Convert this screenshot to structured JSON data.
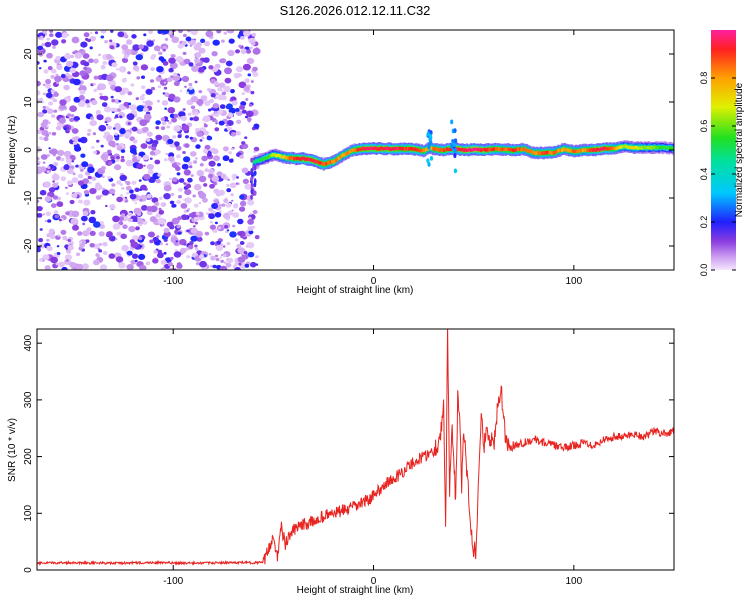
{
  "title": "S126.2026.012.12.11.C32",
  "chart_data": [
    {
      "type": "heatmap",
      "title": "S126.2026.012.12.11.C32",
      "xlabel": "Height of straight line (km)",
      "ylabel": "Frequency (Hz)",
      "xlim": [
        -168,
        150
      ],
      "ylim": [
        -25,
        25
      ],
      "xticks": [
        -100,
        0,
        100
      ],
      "yticks": [
        -20,
        -10,
        0,
        10,
        20
      ],
      "noise_region_x": [
        -168,
        -58
      ],
      "ridge": {
        "x": [
          -60,
          -55,
          -50,
          -45,
          -40,
          -35,
          -30,
          -25,
          -20,
          -15,
          -10,
          -5,
          0,
          5,
          10,
          15,
          20,
          25,
          28,
          30,
          35,
          40,
          45,
          50,
          55,
          60,
          65,
          70,
          75,
          80,
          85,
          90,
          95,
          100,
          105,
          110,
          115,
          120,
          125,
          130,
          135,
          140,
          145,
          150
        ],
        "freq": [
          -2.5,
          -1.8,
          -1.0,
          -1.5,
          -1.8,
          -1.8,
          -2.2,
          -3.0,
          -2.4,
          -1.0,
          0.0,
          0.3,
          0.3,
          0.3,
          0.2,
          0.3,
          0.2,
          -0.2,
          0.5,
          0.2,
          0.0,
          0.3,
          0.0,
          0.1,
          0.0,
          0.2,
          0.1,
          0.0,
          0.2,
          -0.6,
          -0.6,
          -0.5,
          0.2,
          -0.3,
          0.0,
          0.0,
          0.3,
          0.3,
          0.8,
          0.5,
          0.5,
          0.5,
          0.5,
          0.3
        ],
        "amplitude": [
          0.4,
          0.5,
          0.6,
          0.7,
          0.85,
          0.9,
          0.9,
          0.85,
          0.8,
          0.75,
          0.8,
          0.9,
          0.9,
          0.9,
          0.9,
          0.85,
          0.9,
          0.8,
          0.7,
          0.8,
          0.85,
          0.9,
          0.9,
          0.95,
          0.9,
          0.85,
          0.8,
          0.85,
          0.8,
          0.75,
          0.85,
          0.8,
          0.75,
          0.8,
          0.75,
          0.9,
          0.9,
          0.8,
          0.6,
          0.7,
          0.55,
          0.6,
          0.5,
          0.5
        ]
      },
      "colorbar": {
        "label": "Normalized spectral amplitude",
        "range": [
          0.0,
          1.0
        ],
        "ticks": [
          0.0,
          0.2,
          0.4,
          0.6,
          0.8
        ],
        "tick_labels": [
          "0.0",
          "0.2",
          "0.4",
          "0.6",
          "0.8"
        ]
      }
    },
    {
      "type": "line",
      "xlabel": "Height of straight line (km)",
      "ylabel": "SNR (10 * v/v)",
      "xlim": [
        -168,
        150
      ],
      "ylim": [
        0,
        425
      ],
      "xticks": [
        -100,
        0,
        100
      ],
      "yticks": [
        0,
        100,
        200,
        300,
        400
      ],
      "color": "#e8231f",
      "series": [
        {
          "name": "SNR",
          "x": [
            -168,
            -150,
            -130,
            -110,
            -90,
            -70,
            -55,
            -52,
            -50,
            -48,
            -46,
            -44,
            -42,
            -40,
            -35,
            -30,
            -25,
            -20,
            -15,
            -10,
            -5,
            0,
            5,
            10,
            15,
            20,
            25,
            30,
            33,
            35,
            36,
            37,
            38,
            39,
            40,
            41,
            42,
            43,
            44,
            45,
            46,
            47,
            48,
            49,
            50,
            51,
            52,
            53,
            54,
            55,
            56,
            58,
            60,
            62,
            64,
            65,
            66,
            68,
            70,
            75,
            80,
            85,
            90,
            95,
            100,
            105,
            110,
            115,
            120,
            125,
            130,
            135,
            140,
            145,
            150
          ],
          "values": [
            12,
            13,
            12,
            13,
            12,
            13,
            13,
            40,
            60,
            25,
            75,
            45,
            60,
            70,
            80,
            85,
            95,
            100,
            105,
            110,
            120,
            130,
            150,
            160,
            175,
            190,
            200,
            210,
            230,
            290,
            60,
            420,
            140,
            260,
            200,
            120,
            300,
            260,
            150,
            240,
            200,
            160,
            100,
            60,
            40,
            30,
            120,
            220,
            280,
            200,
            250,
            230,
            220,
            290,
            310,
            260,
            230,
            215,
            220,
            225,
            230,
            225,
            220,
            215,
            220,
            225,
            220,
            230,
            235,
            235,
            240,
            235,
            245,
            240,
            245
          ]
        }
      ]
    }
  ]
}
